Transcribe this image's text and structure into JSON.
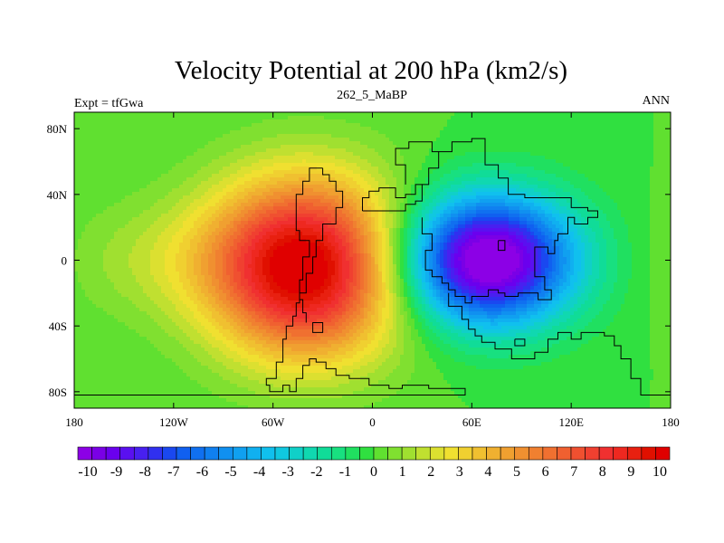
{
  "chart_data": {
    "type": "heatmap",
    "title": "Velocity Potential at 200 hPa (km2/s)",
    "left_label": "Expt = tfGwa",
    "center_label": "262_5_MaBP",
    "right_label": "ANN",
    "x_range": [
      -180,
      180
    ],
    "y_range": [
      -90,
      90
    ],
    "x_ticks": [
      {
        "value": -180,
        "label": "180"
      },
      {
        "value": -120,
        "label": "120W"
      },
      {
        "value": -60,
        "label": "60W"
      },
      {
        "value": 0,
        "label": "0"
      },
      {
        "value": 60,
        "label": "60E"
      },
      {
        "value": 120,
        "label": "120E"
      },
      {
        "value": 180,
        "label": "180"
      }
    ],
    "y_ticks": [
      {
        "value": 80,
        "label": "80N"
      },
      {
        "value": 40,
        "label": "40N"
      },
      {
        "value": 0,
        "label": "0"
      },
      {
        "value": -40,
        "label": "40S"
      },
      {
        "value": -80,
        "label": "80S"
      }
    ],
    "colorbar": {
      "min": -10.5,
      "max": 10.5,
      "step": 0.5,
      "tick_labels": [
        "-10",
        "-9",
        "-8",
        "-7",
        "-6",
        "-5",
        "-4",
        "-3",
        "-2",
        "-1",
        "0",
        "1",
        "2",
        "3",
        "4",
        "5",
        "6",
        "7",
        "8",
        "9",
        "10"
      ],
      "colors": [
        "#8c00e6",
        "#7a00e6",
        "#6a00ee",
        "#5a10f0",
        "#4820f0",
        "#3030f0",
        "#1a48f0",
        "#1060f0",
        "#1070f0",
        "#1080f0",
        "#1090f0",
        "#10a0f0",
        "#10b0f0",
        "#10c0ee",
        "#10c8e0",
        "#10d0c8",
        "#10d8b0",
        "#10dc98",
        "#18e080",
        "#20e060",
        "#30e040",
        "#60e030",
        "#80e030",
        "#a0e030",
        "#c0e030",
        "#dce030",
        "#f0e030",
        "#f0d030",
        "#f0c030",
        "#f0b030",
        "#f0a030",
        "#f09030",
        "#f08030",
        "#f07030",
        "#f06030",
        "#f05030",
        "#f04030",
        "#f03030",
        "#ee2820",
        "#e82010",
        "#e01000",
        "#e00000"
      ]
    },
    "field_centers": [
      {
        "lon": -40,
        "lat": -5,
        "amplitude": 10.5,
        "sigma_lon": 40,
        "sigma_lat": 40
      },
      {
        "lon": 70,
        "lat": 0,
        "amplitude": -10.0,
        "sigma_lon": 34,
        "sigma_lat": 28
      }
    ],
    "coastline": [
      [
        [
          -30,
          56
        ],
        [
          -30,
          52
        ],
        [
          -26,
          52
        ],
        [
          -26,
          48
        ],
        [
          -22,
          48
        ],
        [
          -22,
          42
        ],
        [
          -18,
          42
        ],
        [
          -18,
          32
        ],
        [
          -22,
          32
        ],
        [
          -22,
          22
        ],
        [
          -30,
          22
        ],
        [
          -30,
          12
        ],
        [
          -34,
          12
        ],
        [
          -34,
          2
        ],
        [
          -36,
          2
        ],
        [
          -36,
          -8
        ],
        [
          -40,
          -8
        ],
        [
          -40,
          -20
        ],
        [
          -44,
          -20
        ],
        [
          -44,
          -26
        ],
        [
          -46,
          -26
        ],
        [
          -46,
          -34
        ],
        [
          -48,
          -34
        ],
        [
          -48,
          -40
        ],
        [
          -52,
          -40
        ],
        [
          -52,
          -48
        ],
        [
          -54,
          -48
        ],
        [
          -54,
          -62
        ],
        [
          -58,
          -62
        ],
        [
          -58,
          -72
        ],
        [
          -64,
          -72
        ],
        [
          -64,
          -76
        ],
        [
          -62,
          -76
        ],
        [
          -62,
          -80
        ],
        [
          -54,
          -80
        ],
        [
          -54,
          -76
        ],
        [
          -50,
          -76
        ],
        [
          -50,
          -80
        ],
        [
          -46,
          -80
        ],
        [
          -46,
          -72
        ],
        [
          -42,
          -72
        ],
        [
          -42,
          -64
        ],
        [
          -38,
          -64
        ],
        [
          -38,
          -60
        ],
        [
          -34,
          -60
        ],
        [
          -34,
          -62
        ],
        [
          -28,
          -62
        ],
        [
          -28,
          -66
        ],
        [
          -22,
          -66
        ],
        [
          -22,
          -70
        ],
        [
          -14,
          -70
        ],
        [
          -14,
          -72
        ],
        [
          -2,
          -72
        ],
        [
          -2,
          -76
        ],
        [
          10,
          -76
        ],
        [
          10,
          -78
        ],
        [
          18,
          -78
        ],
        [
          18,
          -76
        ],
        [
          34,
          -76
        ],
        [
          34,
          -78
        ],
        [
          56,
          -78
        ],
        [
          56,
          -82
        ],
        [
          -180,
          -82
        ]
      ],
      [
        [
          -30,
          56
        ],
        [
          -38,
          56
        ],
        [
          -38,
          48
        ],
        [
          -42,
          48
        ],
        [
          -42,
          40
        ],
        [
          -46,
          40
        ],
        [
          -46,
          18
        ],
        [
          -44,
          18
        ],
        [
          -44,
          12
        ],
        [
          -38,
          12
        ],
        [
          -38,
          2
        ],
        [
          -42,
          2
        ],
        [
          -42,
          -12
        ],
        [
          -44,
          -12
        ],
        [
          -44,
          -24
        ],
        [
          -42,
          -24
        ],
        [
          -42,
          -32
        ],
        [
          -40,
          -32
        ],
        [
          -40,
          -38
        ]
      ],
      [
        [
          -30,
          -40
        ],
        [
          -30,
          -44
        ],
        [
          -36,
          -44
        ],
        [
          -36,
          -38
        ],
        [
          -30,
          -38
        ],
        [
          -30,
          -40
        ]
      ],
      [
        [
          -6,
          30
        ],
        [
          -6,
          38
        ],
        [
          -2,
          38
        ],
        [
          -2,
          42
        ],
        [
          4,
          42
        ],
        [
          4,
          44
        ],
        [
          14,
          44
        ],
        [
          14,
          38
        ],
        [
          20,
          38
        ],
        [
          20,
          40
        ],
        [
          26,
          40
        ],
        [
          26,
          46
        ],
        [
          30,
          46
        ],
        [
          30,
          36
        ],
        [
          26,
          36
        ],
        [
          26,
          34
        ],
        [
          20,
          34
        ],
        [
          20,
          30
        ],
        [
          -6,
          30
        ]
      ],
      [
        [
          30,
          46
        ],
        [
          34,
          46
        ],
        [
          34,
          56
        ],
        [
          40,
          56
        ],
        [
          40,
          66
        ],
        [
          48,
          66
        ],
        [
          48,
          72
        ],
        [
          60,
          72
        ],
        [
          60,
          74
        ],
        [
          68,
          74
        ],
        [
          68,
          58
        ],
        [
          76,
          58
        ],
        [
          76,
          50
        ],
        [
          82,
          50
        ],
        [
          82,
          40
        ],
        [
          92,
          40
        ],
        [
          92,
          38
        ],
        [
          120,
          38
        ],
        [
          120,
          32
        ],
        [
          130,
          32
        ],
        [
          130,
          30
        ],
        [
          136,
          30
        ],
        [
          136,
          26
        ],
        [
          130,
          26
        ],
        [
          130,
          22
        ],
        [
          122,
          22
        ],
        [
          122,
          26
        ],
        [
          118,
          26
        ],
        [
          118,
          16
        ],
        [
          112,
          16
        ],
        [
          112,
          12
        ],
        [
          110,
          12
        ],
        [
          110,
          4
        ],
        [
          106,
          4
        ],
        [
          106,
          8
        ],
        [
          98,
          8
        ],
        [
          98,
          -10
        ],
        [
          104,
          -10
        ],
        [
          104,
          -18
        ],
        [
          108,
          -18
        ],
        [
          108,
          -24
        ],
        [
          100,
          -24
        ],
        [
          100,
          -20
        ],
        [
          88,
          -20
        ],
        [
          88,
          -22
        ],
        [
          80,
          -22
        ],
        [
          80,
          -20
        ],
        [
          76,
          -20
        ],
        [
          76,
          -18
        ],
        [
          70,
          -18
        ],
        [
          70,
          -22
        ],
        [
          60,
          -22
        ],
        [
          60,
          -26
        ],
        [
          56,
          -26
        ],
        [
          56,
          -22
        ],
        [
          50,
          -22
        ],
        [
          50,
          -18
        ],
        [
          46,
          -18
        ],
        [
          46,
          -14
        ],
        [
          42,
          -14
        ],
        [
          42,
          -10
        ],
        [
          36,
          -10
        ],
        [
          36,
          -6
        ],
        [
          32,
          -6
        ],
        [
          32,
          6
        ],
        [
          36,
          6
        ],
        [
          36,
          16
        ],
        [
          30,
          16
        ],
        [
          30,
          26
        ]
      ],
      [
        [
          40,
          66
        ],
        [
          36,
          66
        ],
        [
          36,
          72
        ],
        [
          22,
          72
        ],
        [
          22,
          68
        ],
        [
          14,
          68
        ],
        [
          14,
          58
        ],
        [
          20,
          58
        ],
        [
          20,
          46
        ]
      ],
      [
        [
          46,
          -20
        ],
        [
          46,
          -28
        ],
        [
          54,
          -28
        ],
        [
          54,
          -36
        ],
        [
          58,
          -36
        ],
        [
          58,
          -42
        ],
        [
          62,
          -42
        ],
        [
          62,
          -46
        ],
        [
          66,
          -46
        ],
        [
          66,
          -50
        ],
        [
          74,
          -50
        ],
        [
          74,
          -54
        ],
        [
          84,
          -54
        ],
        [
          84,
          -60
        ],
        [
          98,
          -60
        ],
        [
          98,
          -56
        ],
        [
          106,
          -56
        ],
        [
          106,
          -48
        ],
        [
          112,
          -48
        ],
        [
          112,
          -44
        ],
        [
          120,
          -44
        ],
        [
          120,
          -48
        ],
        [
          126,
          -48
        ],
        [
          126,
          -44
        ],
        [
          140,
          -44
        ],
        [
          140,
          -46
        ],
        [
          146,
          -46
        ],
        [
          146,
          -52
        ],
        [
          150,
          -52
        ],
        [
          150,
          -60
        ],
        [
          156,
          -60
        ],
        [
          156,
          -72
        ],
        [
          162,
          -72
        ],
        [
          162,
          -82
        ],
        [
          180,
          -82
        ]
      ],
      [
        [
          86,
          -48
        ],
        [
          86,
          -52
        ],
        [
          92,
          -52
        ],
        [
          92,
          -48
        ],
        [
          86,
          -48
        ]
      ],
      [
        [
          76,
          12
        ],
        [
          76,
          6
        ],
        [
          80,
          6
        ],
        [
          80,
          12
        ],
        [
          76,
          12
        ]
      ]
    ]
  }
}
